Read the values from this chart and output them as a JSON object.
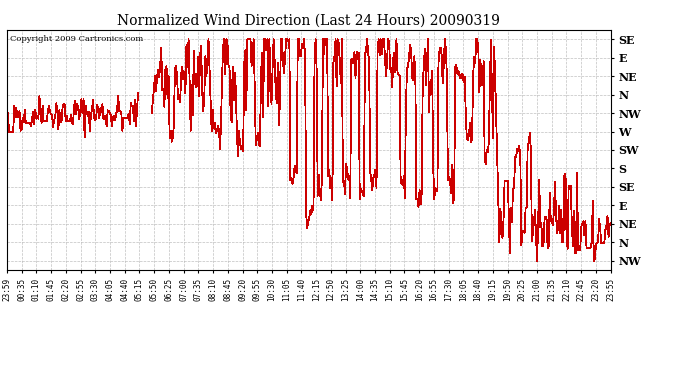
{
  "title": "Normalized Wind Direction (Last 24 Hours) 20090319",
  "copyright": "Copyright 2009 Cartronics.com",
  "line_color": "#cc0000",
  "bg_color": "#ffffff",
  "plot_bg_color": "#ffffff",
  "grid_color": "#b0b0b0",
  "ytick_labels": [
    "SE",
    "E",
    "NE",
    "N",
    "NW",
    "W",
    "SW",
    "S",
    "SE",
    "E",
    "NE",
    "N",
    "NW"
  ],
  "ytick_values": [
    13,
    12,
    11,
    10,
    9,
    8,
    7,
    6,
    5,
    4,
    3,
    2,
    1
  ],
  "ylim": [
    0.5,
    13.5
  ],
  "xtick_labels": [
    "23:59",
    "00:35",
    "01:10",
    "01:45",
    "02:20",
    "02:55",
    "03:30",
    "04:05",
    "04:40",
    "05:15",
    "05:50",
    "06:25",
    "07:00",
    "07:35",
    "08:10",
    "08:45",
    "09:20",
    "09:55",
    "10:30",
    "11:05",
    "11:40",
    "12:15",
    "12:50",
    "13:25",
    "14:00",
    "14:35",
    "15:10",
    "15:45",
    "16:20",
    "16:55",
    "17:30",
    "18:05",
    "18:40",
    "19:15",
    "19:50",
    "20:25",
    "21:00",
    "21:35",
    "22:10",
    "22:45",
    "23:20",
    "23:55"
  ],
  "figsize": [
    6.9,
    3.75
  ],
  "dpi": 100
}
